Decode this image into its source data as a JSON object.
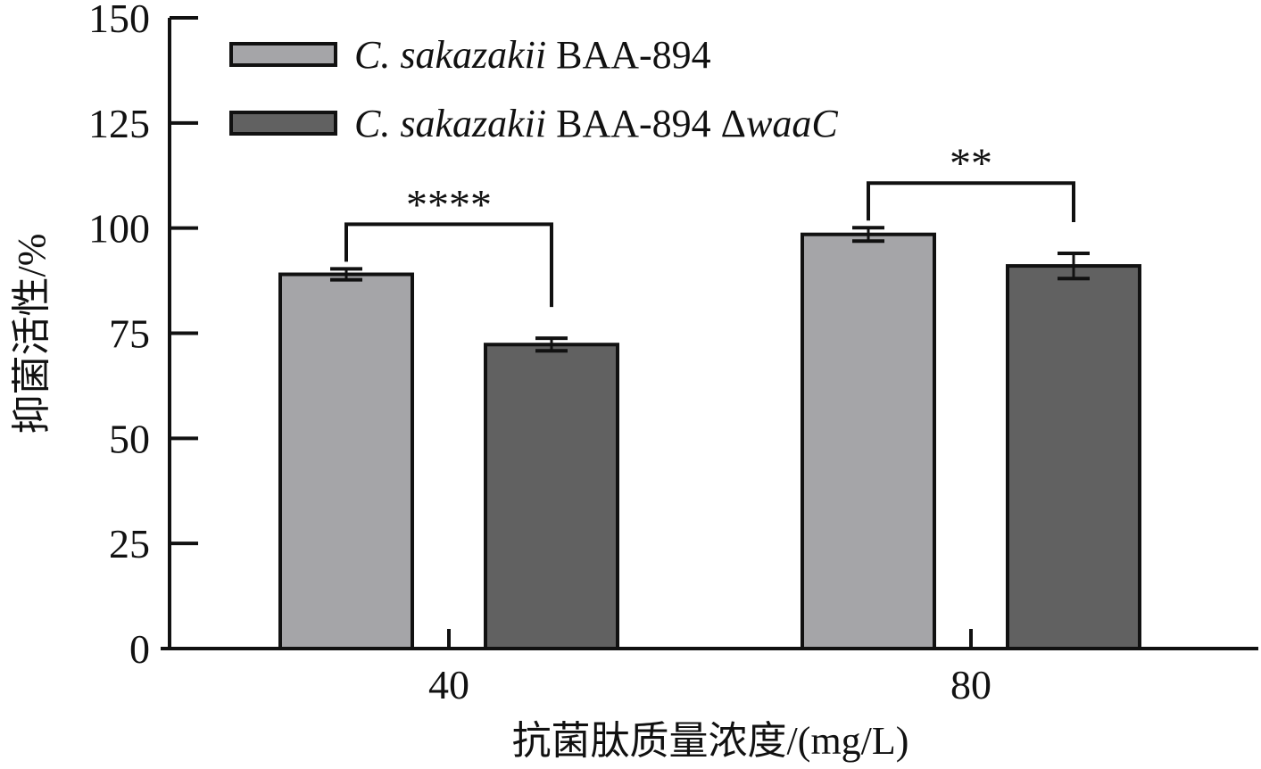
{
  "chart_data": {
    "type": "bar",
    "categories": [
      "40",
      "80"
    ],
    "series": [
      {
        "name_italic": "C. sakazakii",
        "name_rest": " BAA-894",
        "values": [
          89.0,
          98.5
        ],
        "errors": [
          1.3,
          1.6
        ],
        "color": "#a5a5a8"
      },
      {
        "name_italic": "C. sakazakii",
        "name_rest": " BAA-894 Δ",
        "name_suffix_italic": "waaC",
        "values": [
          72.3,
          91.0
        ],
        "errors": [
          1.5,
          3.0
        ],
        "color": "#616161"
      }
    ],
    "significance": [
      "****",
      "**"
    ],
    "xlabel": "抗菌肽质量浓度/(mg/L)",
    "ylabel": "抑菌活性/%",
    "yticks": [
      "0",
      "25",
      "50",
      "75",
      "100",
      "125",
      "150"
    ],
    "ylim": [
      0,
      150
    ],
    "grid": false,
    "legend_position": "top-left"
  }
}
